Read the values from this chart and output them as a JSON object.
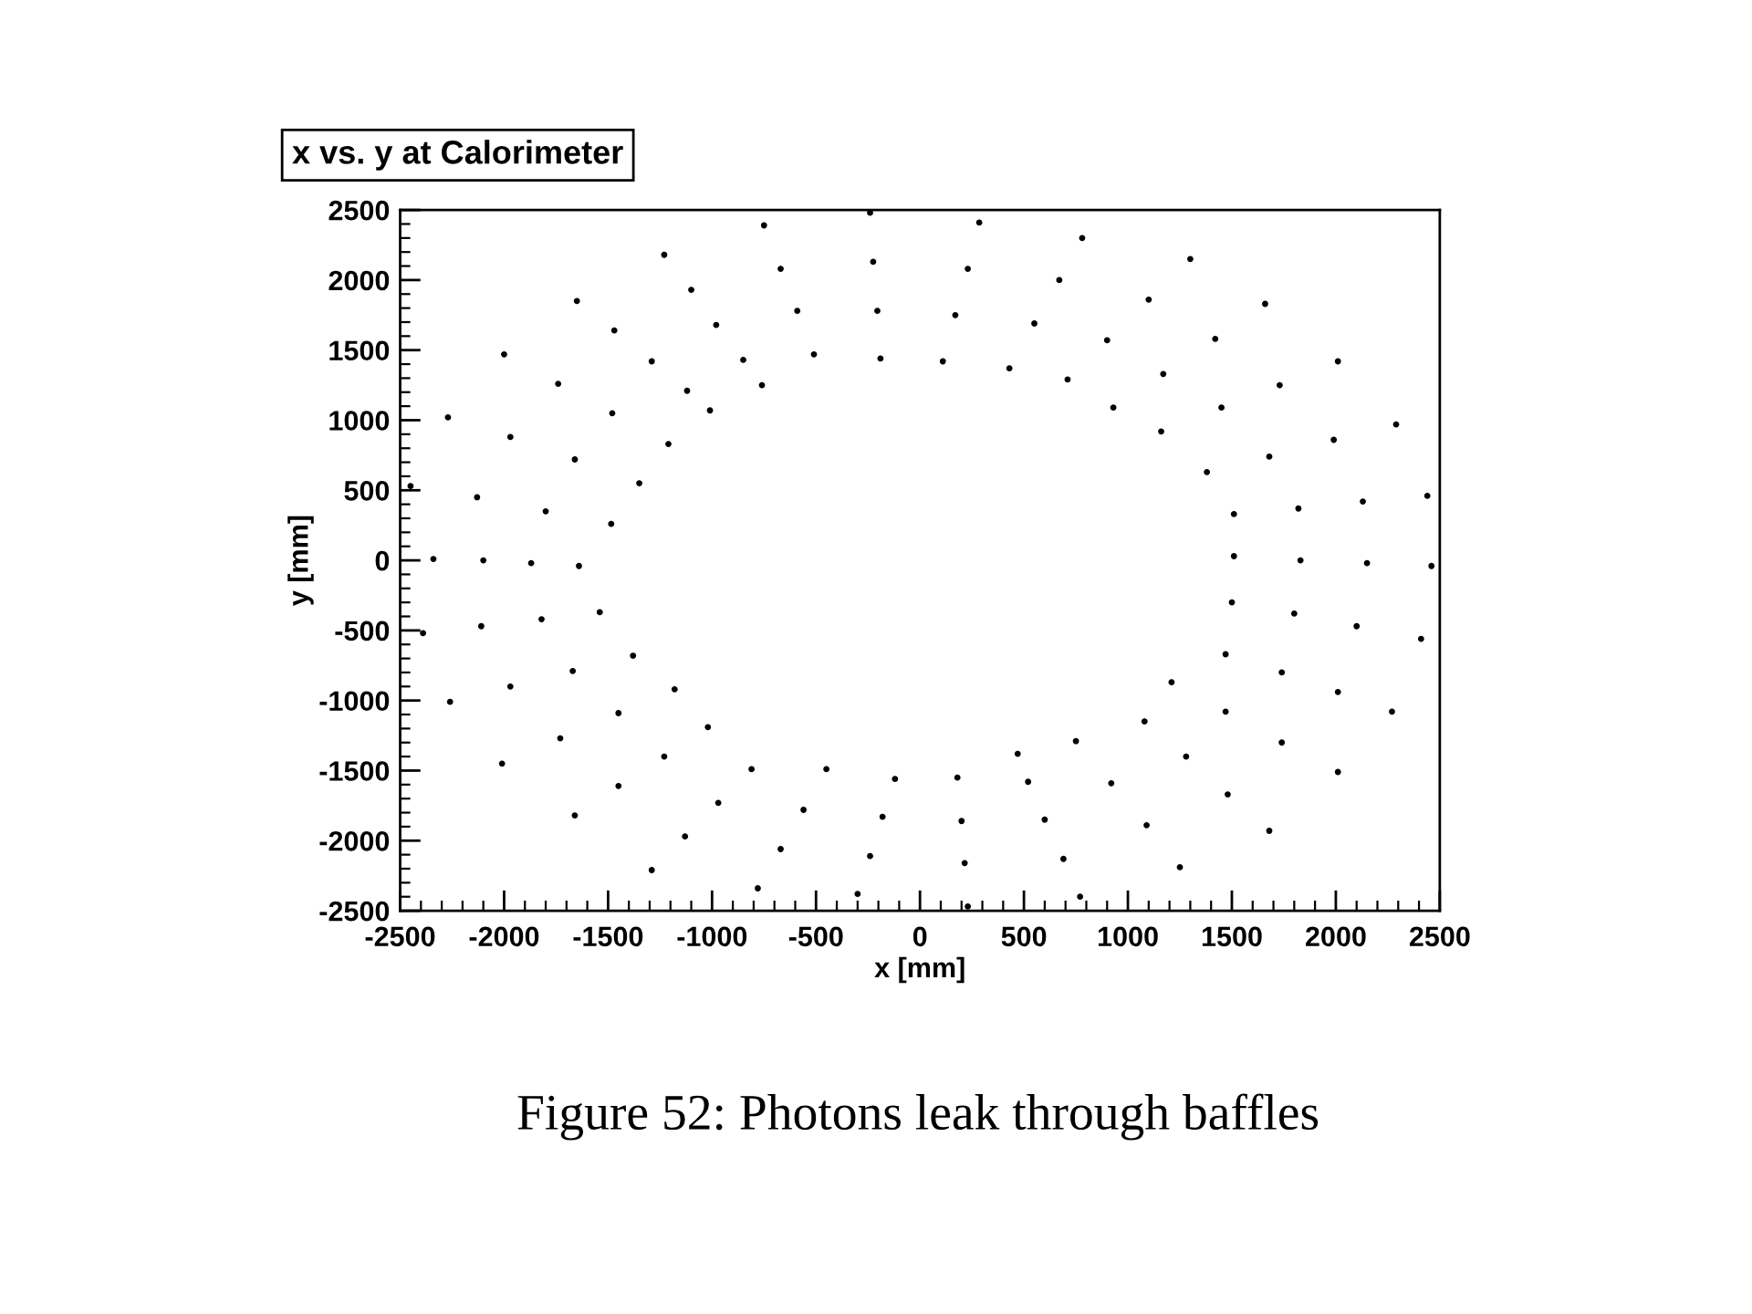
{
  "chart_data": {
    "type": "scatter",
    "title": "x vs. y at Calorimeter",
    "xlabel": "x [mm]",
    "ylabel": "y [mm]",
    "annotations": [
      "Figure 52: Photons leak through baffles"
    ],
    "xlim": [
      -2500,
      2500
    ],
    "ylim": [
      -2500,
      2500
    ],
    "xticks": [
      -2500,
      -2000,
      -1500,
      -1000,
      -500,
      0,
      500,
      1000,
      1500,
      2000,
      2500
    ],
    "yticks": [
      -2500,
      -2000,
      -1500,
      -1000,
      -500,
      0,
      500,
      1000,
      1500,
      2000,
      2500
    ],
    "marker": "circle",
    "series": [
      {
        "color": "#000000",
        "x": [
          -2340,
          -2100,
          -1870,
          -1640,
          -2450,
          -2130,
          -1800,
          -1485,
          -2270,
          -1970,
          -1660,
          -1350,
          -2000,
          -1740,
          -1480,
          -1210,
          -1650,
          -1470,
          -1290,
          -1120,
          -1230,
          -1100,
          -980,
          -850,
          -750,
          -670,
          -590,
          -510,
          -240,
          -225,
          -205,
          -190,
          285,
          230,
          170,
          110,
          780,
          670,
          550,
          430,
          1300,
          1100,
          900,
          710,
          1660,
          1420,
          1170,
          930,
          2010,
          1730,
          1450,
          1160,
          2290,
          1990,
          1680,
          1380,
          2440,
          2130,
          1820,
          1510,
          2460,
          2150,
          1830,
          1510,
          2410,
          2100,
          1800,
          1500,
          2270,
          2010,
          1740,
          1470,
          2010,
          1740,
          1470,
          1210,
          1680,
          1480,
          1280,
          1080,
          1250,
          1090,
          920,
          750,
          770,
          690,
          600,
          520,
          230,
          215,
          200,
          180,
          -300,
          -240,
          -180,
          -120,
          -780,
          -670,
          -560,
          -450,
          -1290,
          -1130,
          -970,
          -810,
          -1660,
          -1450,
          -1230,
          -1020,
          -2010,
          -1730,
          -1450,
          -1180,
          -2260,
          -1970,
          -1670,
          -1380,
          -2390,
          -2110,
          -1820,
          -1540,
          -1010,
          -760,
          470
        ],
        "values": [
          10,
          0,
          -20,
          -40,
          530,
          450,
          350,
          260,
          1020,
          880,
          720,
          550,
          1470,
          1260,
          1050,
          830,
          1850,
          1640,
          1420,
          1210,
          2180,
          1930,
          1680,
          1430,
          2390,
          2080,
          1780,
          1470,
          2480,
          2130,
          1780,
          1440,
          2410,
          2080,
          1750,
          1420,
          2300,
          2000,
          1690,
          1370,
          2150,
          1860,
          1570,
          1290,
          1830,
          1580,
          1330,
          1090,
          1420,
          1250,
          1090,
          920,
          970,
          860,
          740,
          630,
          460,
          420,
          370,
          330,
          -40,
          -20,
          0,
          30,
          -560,
          -470,
          -380,
          -300,
          -1080,
          -940,
          -800,
          -670,
          -1510,
          -1300,
          -1080,
          -870,
          -1930,
          -1670,
          -1400,
          -1150,
          -2190,
          -1890,
          -1590,
          -1290,
          -2400,
          -2130,
          -1850,
          -1580,
          -2470,
          -2160,
          -1860,
          -1550,
          -2380,
          -2110,
          -1830,
          -1560,
          -2340,
          -2060,
          -1780,
          -1490,
          -2210,
          -1970,
          -1730,
          -1490,
          -1820,
          -1610,
          -1400,
          -1190,
          -1450,
          -1270,
          -1090,
          -920,
          -1010,
          -900,
          -790,
          -680,
          -520,
          -470,
          -420,
          -370,
          1070,
          1250,
          -1380
        ]
      }
    ]
  }
}
